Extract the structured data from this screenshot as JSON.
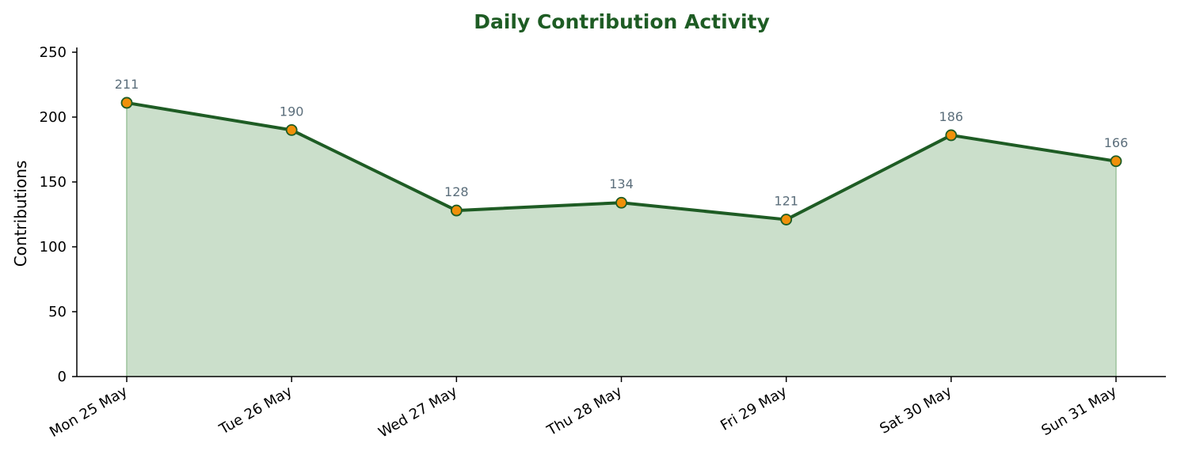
{
  "chart_data": {
    "type": "area",
    "title": "Daily Contribution Activity",
    "xlabel": "",
    "ylabel": "Contributions",
    "categories": [
      "Mon 25 May",
      "Tue 26 May",
      "Wed 27 May",
      "Thu 28 May",
      "Fri 29 May",
      "Sat 30 May",
      "Sun 31 May"
    ],
    "series": [
      {
        "values": [
          211,
          190,
          128,
          134,
          121,
          186,
          166
        ]
      }
    ],
    "data_labels": [
      "211",
      "190",
      "128",
      "134",
      "121",
      "186",
      "166"
    ],
    "ylim": [
      0,
      250
    ],
    "yticks": [
      0,
      50,
      100,
      150,
      200,
      250
    ],
    "ytick_labels": [
      "0",
      "50",
      "100",
      "150",
      "200",
      "250"
    ],
    "grid": false,
    "legend": "none",
    "colors": {
      "title": "#1e5c24",
      "line": "#1e5c24",
      "fill": "#cbdfcb",
      "marker_fill": "#f0900a",
      "marker_stroke": "#1e5c24",
      "data_label": "#5b6e7b",
      "axis": "#000000"
    }
  }
}
